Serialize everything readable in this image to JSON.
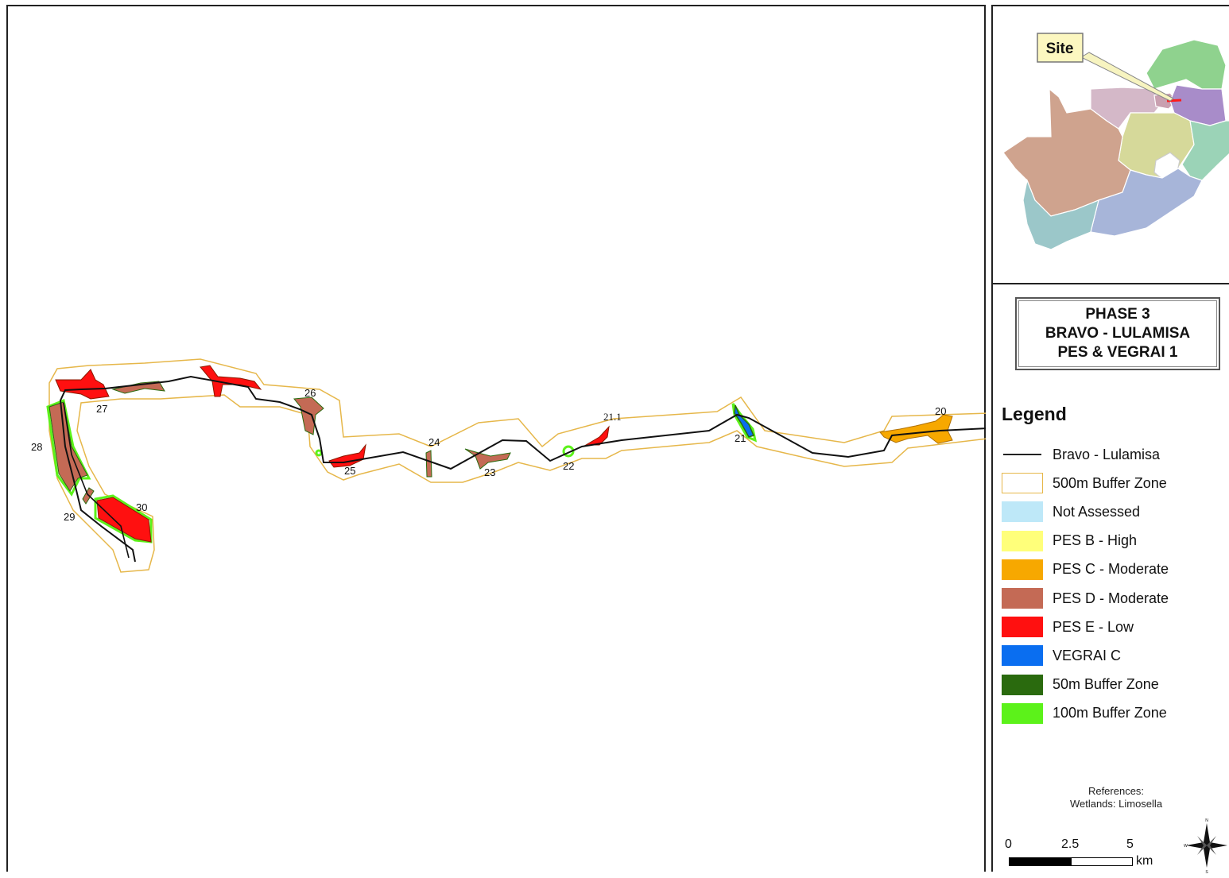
{
  "map": {
    "wetland_labels": [
      "27",
      "28",
      "29",
      "30",
      "26",
      "25",
      "24",
      "23",
      "22",
      "21.1",
      "21",
      "20"
    ]
  },
  "inset": {
    "callout_label": "Site"
  },
  "title": {
    "line1": "PHASE 3",
    "line2": "BRAVO - LULAMISA",
    "line3": "PES & VEGRAI 1"
  },
  "legend": {
    "heading": "Legend",
    "items": [
      {
        "label": "Bravo - Lulamisa",
        "color": "#222222",
        "kind": "line"
      },
      {
        "label": "500m Buffer Zone",
        "color": "#e6b74a",
        "kind": "outline"
      },
      {
        "label": "Not Assessed",
        "color": "#bee8f8",
        "kind": "fill"
      },
      {
        "label": "PES B - High",
        "color": "#ffff7a",
        "kind": "fill"
      },
      {
        "label": "PES C - Moderate",
        "color": "#f7a800",
        "kind": "fill"
      },
      {
        "label": "PES D - Moderate",
        "color": "#c46a55",
        "kind": "fill"
      },
      {
        "label": "PES E - Low",
        "color": "#ff1010",
        "kind": "fill"
      },
      {
        "label": "VEGRAI C",
        "color": "#0a6ef0",
        "kind": "fill"
      },
      {
        "label": "50m Buffer Zone",
        "color": "#2a6a0e",
        "kind": "fill"
      },
      {
        "label": "100m Buffer Zone",
        "color": "#5cf21a",
        "kind": "fill"
      }
    ]
  },
  "references": {
    "line1": "References:",
    "line2": "Wetlands: Limosella"
  },
  "scale": {
    "ticks": [
      "0",
      "2.5",
      "5"
    ],
    "unit": "km"
  },
  "north_arrow": {
    "icon": "compass-rose-icon",
    "n": "N",
    "s": "S",
    "e": "E",
    "w": "W"
  }
}
